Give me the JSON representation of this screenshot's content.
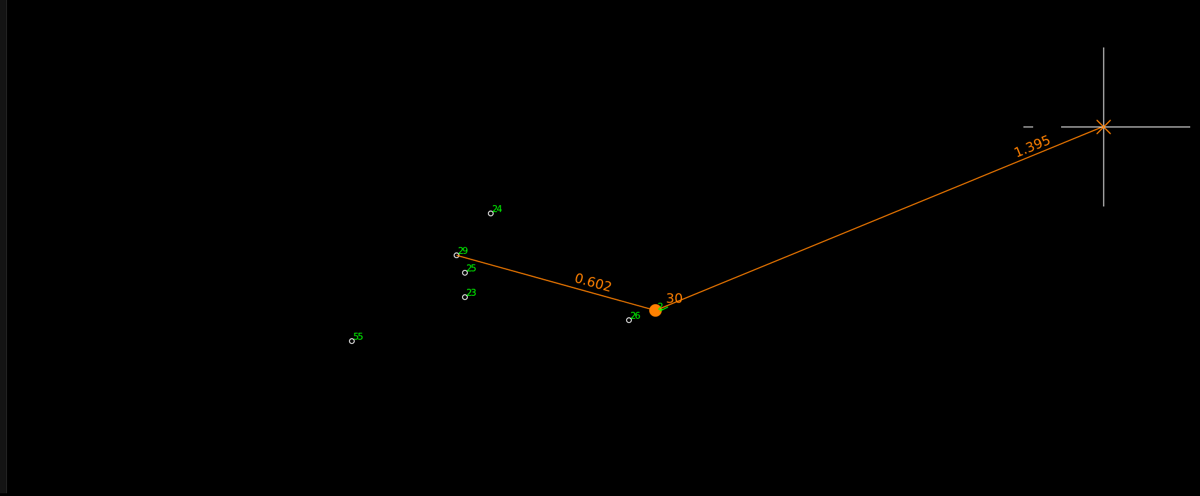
{
  "colors": {
    "background": "#000000",
    "point_marker": "#ffffff",
    "point_label": "#00ff00",
    "measure": "#ff8000",
    "crosshair": "#ffffff"
  },
  "points": [
    {
      "label": "24"
    },
    {
      "label": "29"
    },
    {
      "label": "25"
    },
    {
      "label": "23"
    },
    {
      "label": "26"
    },
    {
      "label": "55"
    },
    {
      "label": "2"
    }
  ],
  "measurements": {
    "segment_1_length": "0.602",
    "segment_2_length": "1.395",
    "vertex_label": "30"
  },
  "crosshair_icon": "crosshair-icon"
}
